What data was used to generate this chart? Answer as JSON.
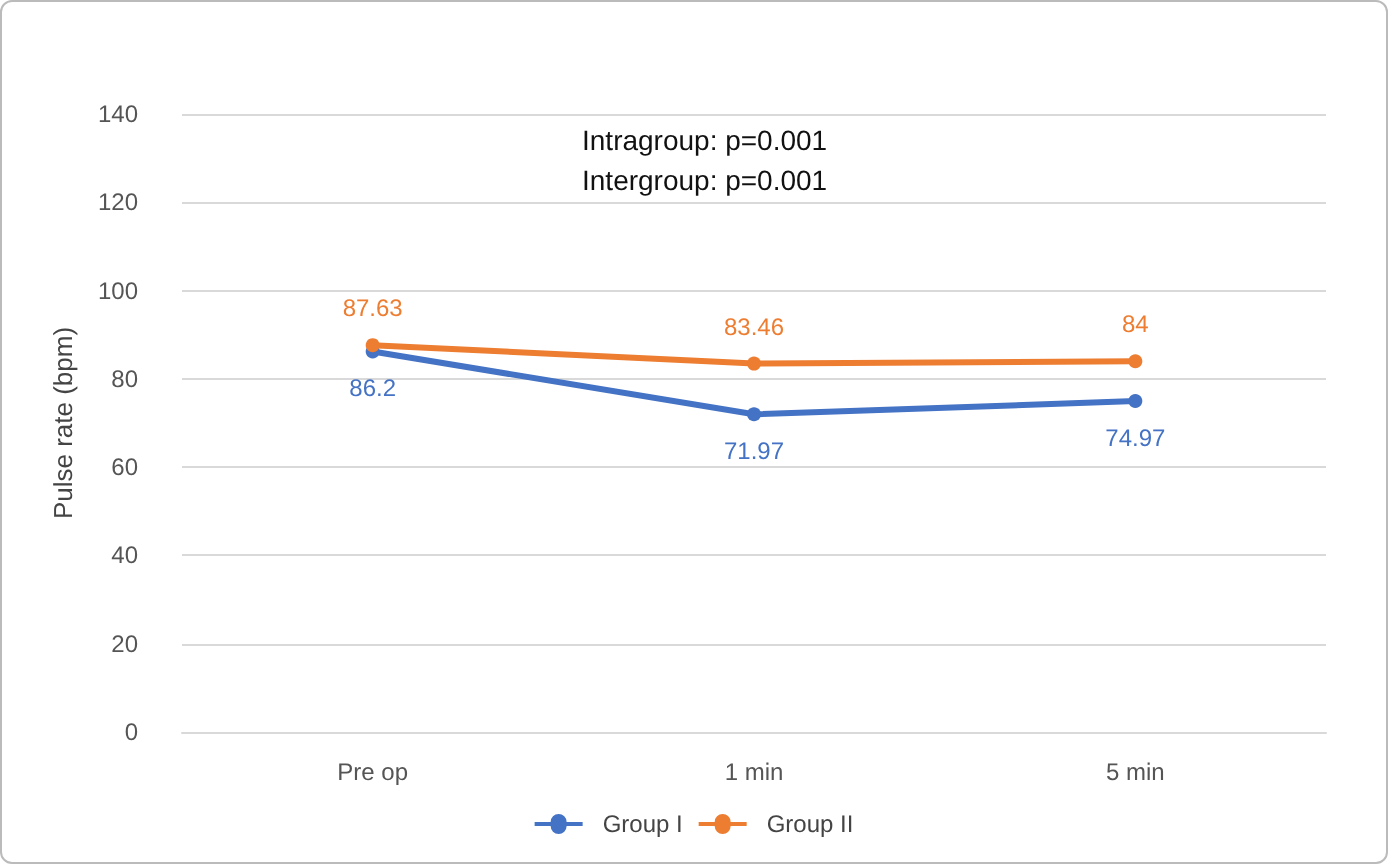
{
  "chart_data": {
    "type": "line",
    "ylabel": "Pulse rate (bpm)",
    "categories": [
      "Pre op",
      "1 min",
      "5 min"
    ],
    "series": [
      {
        "name": "Group I",
        "color": "#4472c4",
        "values": [
          86.2,
          71.97,
          74.97
        ]
      },
      {
        "name": "Group II",
        "color": "#ed7d31",
        "values": [
          87.63,
          83.46,
          84
        ]
      }
    ],
    "ylim": [
      0,
      140
    ],
    "yticks": [
      0,
      20,
      40,
      60,
      80,
      100,
      120,
      140
    ],
    "grid": "y",
    "legend": "bottom",
    "marker": "circle",
    "line_style": "solid",
    "data_labels": true,
    "annotations": [
      "Intragroup: p=0.001",
      "Intergroup: p=0.001"
    ]
  }
}
